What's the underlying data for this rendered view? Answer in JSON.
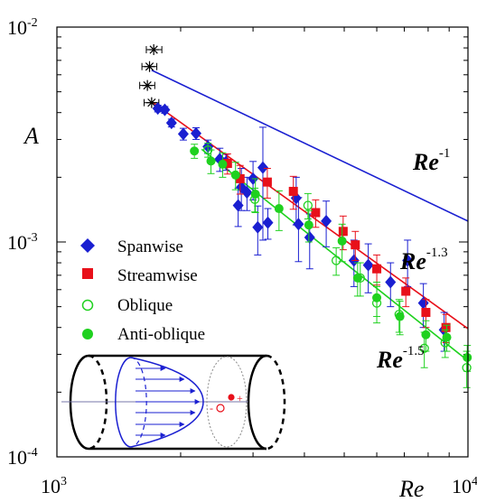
{
  "chart_data": {
    "type": "scatter",
    "title": "",
    "xlabel": "Re",
    "ylabel": "A",
    "xscale": "log",
    "yscale": "log",
    "xlim": [
      1000,
      10000
    ],
    "ylim": [
      0.0001,
      0.01
    ],
    "x_tick_labels": [
      {
        "base": "10",
        "exp": "3",
        "value": 1000
      },
      {
        "base": "10",
        "exp": "4",
        "value": 10000
      }
    ],
    "y_tick_labels": [
      {
        "base": "10",
        "exp": "-4",
        "value": 0.0001
      },
      {
        "base": "10",
        "exp": "-3",
        "value": 0.001
      },
      {
        "base": "10",
        "exp": "-2",
        "value": 0.01
      }
    ],
    "legend_position": "center-left",
    "series": [
      {
        "name": "Spanwise",
        "marker": "diamond",
        "color": "#1a1fd1",
        "points": [
          {
            "x": 1760,
            "y": 0.00418,
            "e": 0.00015
          },
          {
            "x": 1830,
            "y": 0.00412,
            "e": 0.00015
          },
          {
            "x": 1900,
            "y": 0.00358,
            "e": 0.00015
          },
          {
            "x": 2030,
            "y": 0.00318,
            "e": 0.0002
          },
          {
            "x": 2180,
            "y": 0.0032,
            "e": 0.0002
          },
          {
            "x": 2330,
            "y": 0.00278,
            "e": 0.0002
          },
          {
            "x": 2490,
            "y": 0.00243,
            "e": 0.0003
          },
          {
            "x": 2580,
            "y": 0.00236,
            "e": 0.0002
          },
          {
            "x": 2760,
            "y": 0.00148,
            "e": 0.0003
          },
          {
            "x": 2810,
            "y": 0.0018,
            "e": 0.0004
          },
          {
            "x": 2900,
            "y": 0.0017,
            "e": 0.0003
          },
          {
            "x": 3000,
            "y": 0.00197,
            "e": 0.0004
          },
          {
            "x": 3080,
            "y": 0.00117,
            "e": 0.0003
          },
          {
            "x": 3170,
            "y": 0.00222,
            "e": 0.0012
          },
          {
            "x": 3260,
            "y": 0.00123,
            "e": 0.0002
          },
          {
            "x": 3820,
            "y": 0.0016,
            "e": 0.0004
          },
          {
            "x": 3870,
            "y": 0.00121,
            "e": 0.0004
          },
          {
            "x": 4120,
            "y": 0.00105,
            "e": 0.0003
          },
          {
            "x": 4520,
            "y": 0.00125,
            "e": 0.0003
          },
          {
            "x": 5280,
            "y": 0.00082,
            "e": 0.0002
          },
          {
            "x": 5720,
            "y": 0.00078,
            "e": 0.0002
          },
          {
            "x": 6480,
            "y": 0.00065,
            "e": 0.00015
          },
          {
            "x": 7130,
            "y": 0.00082,
            "e": 0.0002
          },
          {
            "x": 7790,
            "y": 0.00052,
            "e": 0.00012
          },
          {
            "x": 8750,
            "y": 0.00039,
            "e": 8e-05
          }
        ]
      },
      {
        "name": "Streamwise",
        "marker": "square",
        "color": "#e8101a",
        "points": [
          {
            "x": 2600,
            "y": 0.00232,
            "e": 0.00025
          },
          {
            "x": 2790,
            "y": 0.00197,
            "e": 0.0003
          },
          {
            "x": 3250,
            "y": 0.0019,
            "e": 0.0003
          },
          {
            "x": 3760,
            "y": 0.00172,
            "e": 0.0003
          },
          {
            "x": 4260,
            "y": 0.00137,
            "e": 0.0002
          },
          {
            "x": 4970,
            "y": 0.00112,
            "e": 0.0002
          },
          {
            "x": 5320,
            "y": 0.00097,
            "e": 0.00015
          },
          {
            "x": 6000,
            "y": 0.00075,
            "e": 0.00012
          },
          {
            "x": 7060,
            "y": 0.00059,
            "e": 9e-05
          },
          {
            "x": 7900,
            "y": 0.00047,
            "e": 7e-05
          },
          {
            "x": 8840,
            "y": 0.0004,
            "e": 6e-05
          }
        ]
      },
      {
        "name": "Oblique",
        "marker": "open-circle",
        "color": "#1fd11f",
        "points": [
          {
            "x": 2330,
            "y": 0.00268,
            "e": 0.0002
          },
          {
            "x": 3030,
            "y": 0.00158,
            "e": 0.0002
          },
          {
            "x": 4080,
            "y": 0.00148,
            "e": 0.0002
          },
          {
            "x": 4780,
            "y": 0.00082,
            "e": 0.00012
          },
          {
            "x": 5470,
            "y": 0.00068,
            "e": 0.00012
          },
          {
            "x": 6000,
            "y": 0.00052,
            "e": 0.0001
          },
          {
            "x": 6800,
            "y": 0.00046,
            "e": 8e-05
          },
          {
            "x": 7830,
            "y": 0.00032,
            "e": 6e-05
          },
          {
            "x": 8800,
            "y": 0.00034,
            "e": 5e-05
          },
          {
            "x": 9930,
            "y": 0.00026,
            "e": 5e-05
          }
        ]
      },
      {
        "name": "Anti-oblique",
        "marker": "filled-circle",
        "color": "#1fd11f",
        "points": [
          {
            "x": 2160,
            "y": 0.00265,
            "e": 0.0002
          },
          {
            "x": 2370,
            "y": 0.00238,
            "e": 0.0003
          },
          {
            "x": 2530,
            "y": 0.0023,
            "e": 0.0003
          },
          {
            "x": 2720,
            "y": 0.00205,
            "e": 0.0003
          },
          {
            "x": 3040,
            "y": 0.00167,
            "e": 0.0003
          },
          {
            "x": 3470,
            "y": 0.00143,
            "e": 0.0003
          },
          {
            "x": 4100,
            "y": 0.0012,
            "e": 0.0002
          },
          {
            "x": 4940,
            "y": 0.00101,
            "e": 0.0002
          },
          {
            "x": 5390,
            "y": 0.00068,
            "e": 0.00012
          },
          {
            "x": 6000,
            "y": 0.00055,
            "e": 0.0001
          },
          {
            "x": 6830,
            "y": 0.00045,
            "e": 8e-05
          },
          {
            "x": 7900,
            "y": 0.00037,
            "e": 6e-05
          },
          {
            "x": 8880,
            "y": 0.00036,
            "e": 5e-05
          },
          {
            "x": 9960,
            "y": 0.00029,
            "e": 4e-05
          }
        ]
      },
      {
        "name": "",
        "marker": "asterisk",
        "color": "#000000",
        "points": [
          {
            "x": 1720,
            "y": 0.00785,
            "xlo": 1650,
            "xhi": 1800
          },
          {
            "x": 1680,
            "y": 0.00655,
            "xlo": 1610,
            "xhi": 1750
          },
          {
            "x": 1660,
            "y": 0.00535,
            "xlo": 1590,
            "xhi": 1730
          },
          {
            "x": 1700,
            "y": 0.00445,
            "xlo": 1630,
            "xhi": 1770
          }
        ]
      }
    ],
    "fit_lines": [
      {
        "label": "Re",
        "exponent": "-1",
        "color": "#1a1fd1",
        "x": [
          1700,
          10000
        ],
        "y": [
          0.0063,
          0.00125
        ]
      },
      {
        "label": "Re",
        "exponent": "-1.3",
        "color": "#e8101a",
        "x": [
          1700,
          10000
        ],
        "y": [
          0.0045,
          0.000395
        ]
      },
      {
        "label": "Re",
        "exponent": "-1.5",
        "color": "#1fd11f",
        "x": [
          2250,
          10000
        ],
        "y": [
          0.0027,
          0.00028
        ]
      }
    ],
    "inset": {
      "description_markers": {
        "plus": "+",
        "minus": "-"
      }
    }
  }
}
